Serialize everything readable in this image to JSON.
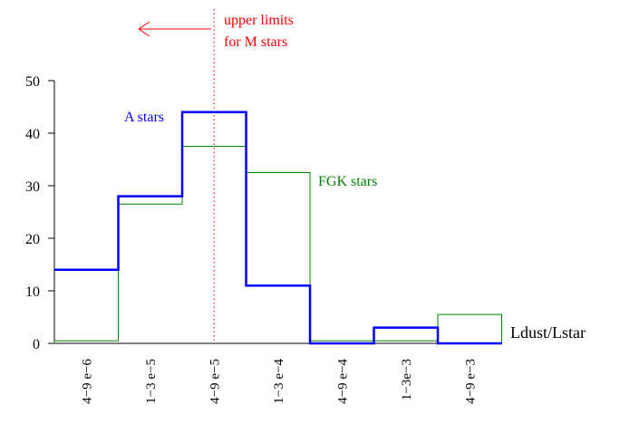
{
  "chart_data": {
    "type": "histogram",
    "categories": [
      "4−9 e−6",
      "1−3 e−5",
      "4−9 e−5",
      "1−3 e−4",
      "4−9 e−4",
      "1−3e−3",
      "4−9 e−3"
    ],
    "xlabel": "Ldust/Lstar",
    "ylabel": "",
    "yticks": [
      0,
      10,
      20,
      30,
      40,
      50
    ],
    "ylim": [
      0,
      52
    ],
    "grid": false,
    "series": [
      {
        "name": "A stars",
        "color": "#0000ff",
        "values": [
          14,
          28,
          44,
          11,
          0,
          3,
          0
        ]
      },
      {
        "name": "FGK stars",
        "color": "#008000",
        "values": [
          0.5,
          26.5,
          37.5,
          32.5,
          0.5,
          0.5,
          5.5
        ]
      }
    ],
    "annotation": {
      "lines": [
        "upper limits",
        "for M stars"
      ],
      "color": "#ff0000",
      "x_category_center": 2
    }
  }
}
